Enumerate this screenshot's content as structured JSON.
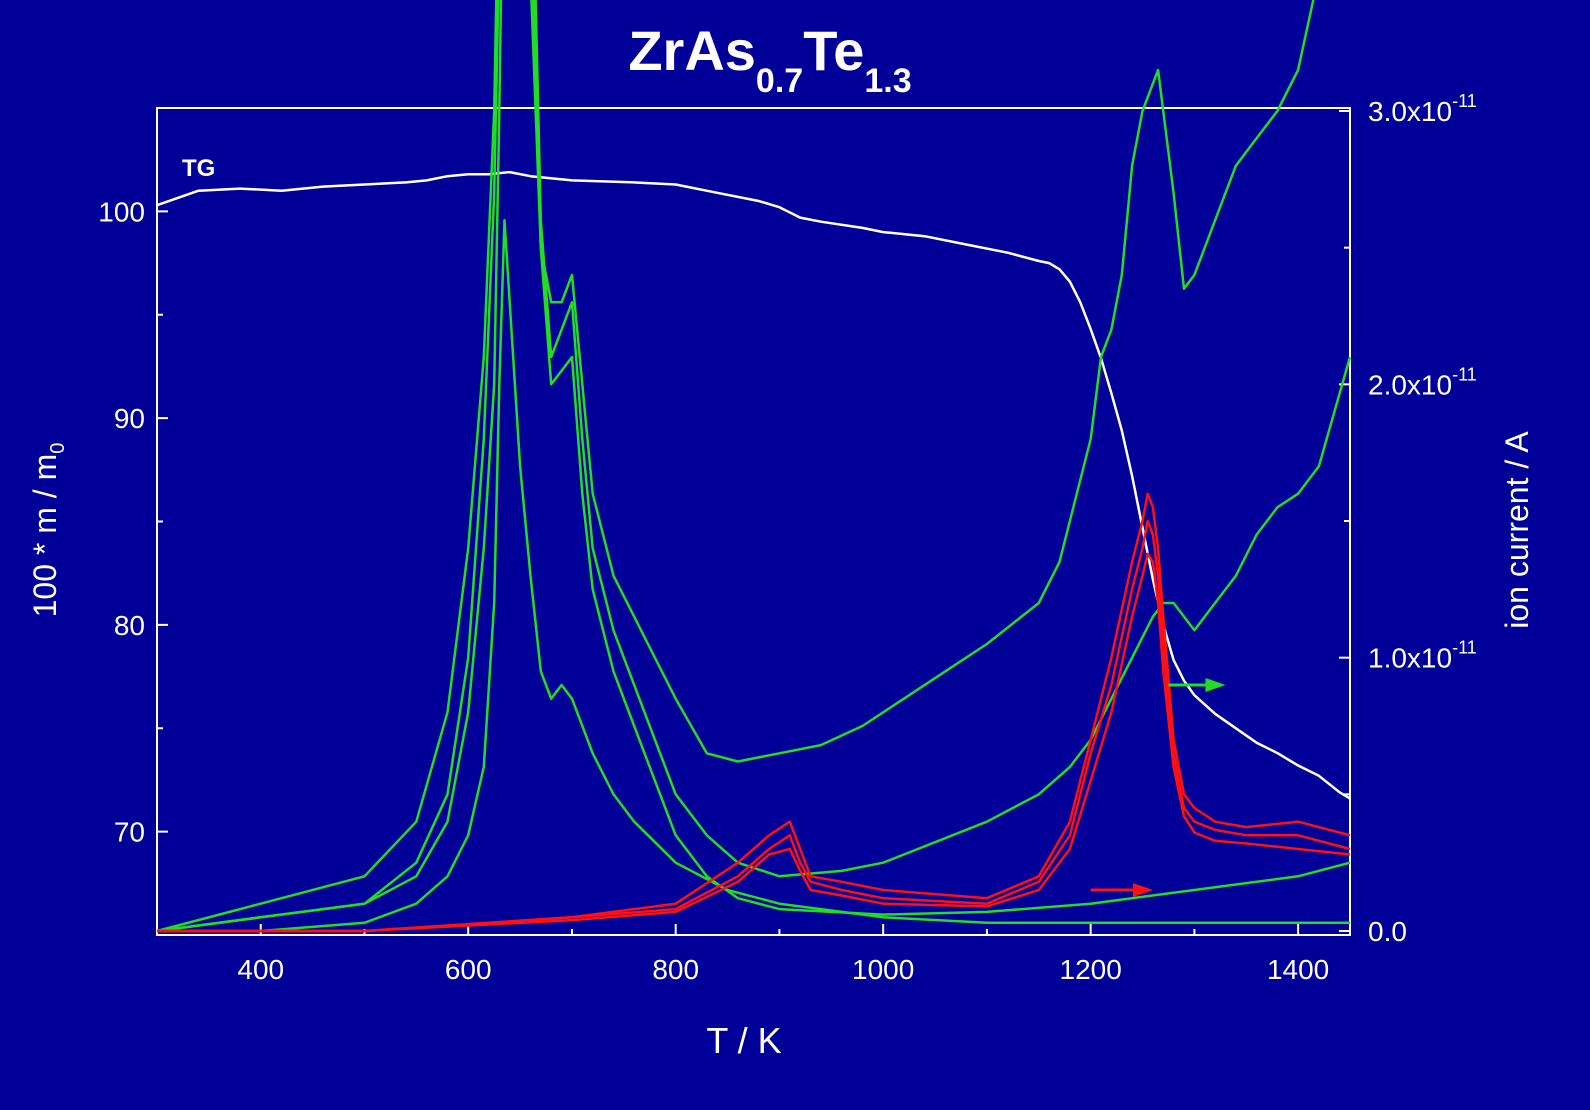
{
  "chart_data": {
    "type": "line",
    "title": {
      "base": "ZrAs",
      "sub1": "0.7",
      "mid": "Te",
      "sub2": "1.3"
    },
    "xlabel": "T / K",
    "ylabel_left": {
      "main": "100 * m / m",
      "sub": "0"
    },
    "ylabel_right": "ion current / A",
    "xlim": [
      300,
      1450
    ],
    "ylim_left": [
      65,
      105
    ],
    "ylim_right": [
      0,
      3e-11
    ],
    "x_ticks": [
      "400",
      "600",
      "800",
      "1000",
      "1200",
      "1400"
    ],
    "y_left_ticks": [
      "70",
      "80",
      "90",
      "100"
    ],
    "y_right_ticks": [
      {
        "mant": "0.0",
        "exp": ""
      },
      {
        "mant": "1.0x10",
        "exp": "-11"
      },
      {
        "mant": "2.0x10",
        "exp": "-11"
      },
      {
        "mant": "3.0x10",
        "exp": "-11"
      }
    ],
    "annotations": {
      "tg_label": "TG"
    },
    "colors": {
      "background": "#000099",
      "text": "#ffffff",
      "tg": "#ffffff",
      "green": "#22dd22",
      "red": "#ff1111"
    },
    "series": [
      {
        "id": "tg",
        "axis": "left",
        "color": "#ffffff",
        "x": [
          300,
          340,
          380,
          420,
          460,
          500,
          540,
          560,
          580,
          600,
          620,
          640,
          660,
          700,
          760,
          800,
          840,
          880,
          900,
          920,
          940,
          980,
          1000,
          1040,
          1080,
          1120,
          1150,
          1160,
          1170,
          1180,
          1190,
          1200,
          1210,
          1220,
          1230,
          1240,
          1250,
          1260,
          1270,
          1280,
          1290,
          1300,
          1320,
          1340,
          1360,
          1380,
          1400,
          1420,
          1440,
          1450
        ],
        "y": [
          100.3,
          101.0,
          101.1,
          101.0,
          101.2,
          101.3,
          101.4,
          101.5,
          101.7,
          101.8,
          101.8,
          101.9,
          101.7,
          101.5,
          101.4,
          101.3,
          100.9,
          100.5,
          100.2,
          99.7,
          99.5,
          99.2,
          99.0,
          98.8,
          98.4,
          98.0,
          97.6,
          97.5,
          97.2,
          96.6,
          95.6,
          94.3,
          92.9,
          91.2,
          89.4,
          87.2,
          84.7,
          82.2,
          80.0,
          78.3,
          77.3,
          76.6,
          75.7,
          75.0,
          74.3,
          73.8,
          73.2,
          72.7,
          71.9,
          71.6
        ]
      },
      {
        "id": "green-upper",
        "axis": "right",
        "color": "#22dd22",
        "x": [
          300,
          400,
          500,
          550,
          580,
          600,
          615,
          625,
          630,
          635,
          640,
          645,
          650,
          660,
          670,
          680,
          690,
          700,
          710,
          720,
          740,
          760,
          780,
          800,
          830,
          860,
          900,
          940,
          980,
          1020,
          1060,
          1100,
          1150,
          1170,
          1200,
          1210,
          1220,
          1230,
          1240,
          1250,
          1265,
          1280,
          1290,
          1300,
          1320,
          1340,
          1360,
          1380,
          1400,
          1420,
          1450
        ],
        "y": [
          0.0,
          0.1,
          0.2,
          0.4,
          0.8,
          1.4,
          2.1,
          3.0,
          4.0,
          5.4,
          6.2,
          6.6,
          5.4,
          3.5,
          2.5,
          2.3,
          2.3,
          2.4,
          2.0,
          1.6,
          1.3,
          1.15,
          1.0,
          0.85,
          0.65,
          0.62,
          0.65,
          0.68,
          0.75,
          0.85,
          0.95,
          1.05,
          1.2,
          1.35,
          1.8,
          2.1,
          2.2,
          2.4,
          2.8,
          3.0,
          3.15,
          2.7,
          2.35,
          2.4,
          2.6,
          2.8,
          2.9,
          3.0,
          3.15,
          3.5,
          4.0
        ]
      },
      {
        "id": "green-mid",
        "axis": "right",
        "color": "#22dd22",
        "x": [
          300,
          400,
          500,
          550,
          580,
          600,
          615,
          625,
          630,
          635,
          640,
          645,
          650,
          660,
          670,
          680,
          690,
          700,
          710,
          720,
          740,
          760,
          780,
          800,
          830,
          860,
          900,
          960,
          1000,
          1100,
          1150,
          1180,
          1200,
          1220,
          1240,
          1260,
          1270,
          1280,
          1300,
          1320,
          1340,
          1360,
          1380,
          1400,
          1420,
          1450
        ],
        "y": [
          0.0,
          0.05,
          0.1,
          0.25,
          0.5,
          1.0,
          1.8,
          2.7,
          3.6,
          4.8,
          6.0,
          6.8,
          6.2,
          4.2,
          2.6,
          2.1,
          2.2,
          2.3,
          1.8,
          1.4,
          1.1,
          0.9,
          0.7,
          0.5,
          0.35,
          0.25,
          0.2,
          0.22,
          0.25,
          0.4,
          0.5,
          0.6,
          0.7,
          0.85,
          1.0,
          1.15,
          1.2,
          1.2,
          1.1,
          1.2,
          1.3,
          1.45,
          1.55,
          1.6,
          1.7,
          2.1
        ]
      },
      {
        "id": "green-lower",
        "axis": "right",
        "color": "#22dd22",
        "x": [
          300,
          400,
          500,
          550,
          580,
          600,
          615,
          625,
          630,
          635,
          640,
          645,
          650,
          660,
          670,
          680,
          690,
          700,
          710,
          720,
          740,
          760,
          780,
          800,
          830,
          860,
          900,
          1000,
          1100,
          1200,
          1300,
          1400,
          1450
        ],
        "y": [
          0.0,
          0.05,
          0.1,
          0.2,
          0.4,
          0.8,
          1.4,
          2.0,
          3.0,
          4.3,
          6.2,
          6.5,
          5.8,
          3.8,
          2.5,
          2.0,
          2.05,
          2.1,
          1.6,
          1.25,
          0.95,
          0.75,
          0.55,
          0.35,
          0.2,
          0.12,
          0.08,
          0.06,
          0.07,
          0.1,
          0.15,
          0.2,
          0.25
        ]
      },
      {
        "id": "green-small",
        "axis": "right",
        "color": "#22dd22",
        "x": [
          300,
          400,
          500,
          550,
          580,
          600,
          615,
          625,
          630,
          635,
          640,
          650,
          660,
          670,
          680,
          690,
          700,
          720,
          740,
          760,
          800,
          850,
          900,
          1000,
          1100,
          1200,
          1300,
          1400,
          1450
        ],
        "y": [
          0.0,
          0.0,
          0.03,
          0.1,
          0.2,
          0.35,
          0.6,
          1.2,
          2.0,
          2.6,
          2.3,
          1.7,
          1.3,
          0.95,
          0.85,
          0.9,
          0.85,
          0.65,
          0.5,
          0.4,
          0.25,
          0.15,
          0.1,
          0.05,
          0.03,
          0.03,
          0.03,
          0.03,
          0.03
        ]
      },
      {
        "id": "red-a",
        "axis": "right",
        "color": "#ff1111",
        "x": [
          300,
          500,
          700,
          800,
          860,
          890,
          910,
          920,
          930,
          960,
          1000,
          1100,
          1150,
          1180,
          1200,
          1220,
          1240,
          1250,
          1255,
          1260,
          1265,
          1270,
          1280,
          1290,
          1300,
          1320,
          1350,
          1400,
          1450
        ],
        "y": [
          0.0,
          0.0,
          0.05,
          0.1,
          0.25,
          0.35,
          0.4,
          0.3,
          0.2,
          0.18,
          0.15,
          0.12,
          0.2,
          0.4,
          0.7,
          1.0,
          1.35,
          1.5,
          1.6,
          1.55,
          1.4,
          1.15,
          0.7,
          0.5,
          0.45,
          0.4,
          0.38,
          0.4,
          0.35
        ]
      },
      {
        "id": "red-b",
        "axis": "right",
        "color": "#ff1111",
        "x": [
          300,
          500,
          700,
          800,
          860,
          890,
          910,
          920,
          930,
          960,
          1000,
          1100,
          1150,
          1180,
          1200,
          1220,
          1240,
          1250,
          1255,
          1260,
          1265,
          1270,
          1280,
          1290,
          1300,
          1320,
          1350,
          1400,
          1450
        ],
        "y": [
          0.0,
          0.0,
          0.05,
          0.08,
          0.2,
          0.3,
          0.35,
          0.25,
          0.18,
          0.15,
          0.12,
          0.1,
          0.18,
          0.35,
          0.65,
          0.9,
          1.25,
          1.4,
          1.5,
          1.45,
          1.3,
          1.05,
          0.65,
          0.45,
          0.4,
          0.37,
          0.35,
          0.35,
          0.3
        ]
      },
      {
        "id": "red-c",
        "axis": "right",
        "color": "#ff1111",
        "x": [
          300,
          500,
          700,
          800,
          860,
          890,
          910,
          920,
          930,
          960,
          1000,
          1100,
          1150,
          1180,
          1200,
          1220,
          1240,
          1250,
          1255,
          1260,
          1265,
          1270,
          1280,
          1290,
          1300,
          1320,
          1350,
          1400,
          1450
        ],
        "y": [
          0.0,
          0.0,
          0.04,
          0.07,
          0.18,
          0.28,
          0.3,
          0.22,
          0.15,
          0.13,
          0.1,
          0.09,
          0.15,
          0.3,
          0.55,
          0.8,
          1.15,
          1.3,
          1.38,
          1.35,
          1.2,
          0.95,
          0.6,
          0.42,
          0.36,
          0.33,
          0.32,
          0.3,
          0.28
        ]
      }
    ],
    "arrows": [
      {
        "color": "#22dd22",
        "direction": "right",
        "x": [
          1275,
          1330
        ],
        "y_right": 9e-12
      },
      {
        "color": "#ff1111",
        "direction": "right",
        "x": [
          1200,
          1260
        ],
        "y_right": 1.5e-12
      }
    ]
  }
}
